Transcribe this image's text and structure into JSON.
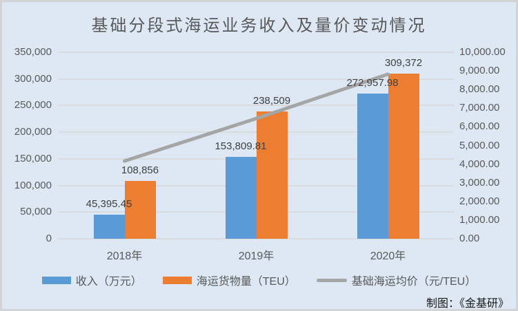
{
  "title": "基础分段式海运业务收入及量价变动情况",
  "credit": "制图：《金基研》",
  "chart_data": {
    "type": "bar",
    "subtype": "grouped bars with line overlay, dual y-axes",
    "title": "基础分段式海运业务收入及量价变动情况",
    "categories": [
      "2018年",
      "2019年",
      "2020年"
    ],
    "series": [
      {
        "key": "income",
        "name": "收入（万元）",
        "type": "bar",
        "axis": "left",
        "color": "#5B9BD5",
        "values": [
          45395.45,
          153809.81,
          272957.98
        ],
        "data_labels": [
          "45,395.45",
          "153,809.81",
          "272,957.98"
        ]
      },
      {
        "key": "volume",
        "name": "海运货物量（TEU）",
        "type": "bar",
        "axis": "left",
        "color": "#ED7D31",
        "values": [
          108856,
          238509,
          309372
        ],
        "data_labels": [
          "108,856",
          "238,509",
          "309,372"
        ]
      },
      {
        "key": "price",
        "name": "基础海运均价（元/TEU）",
        "type": "line",
        "axis": "right",
        "color": "#A5A5A5",
        "values": [
          4170,
          6449,
          8823
        ],
        "data_labels": []
      }
    ],
    "left_axis": {
      "min": 0,
      "max": 350000,
      "step": 50000,
      "tick_labels": [
        "0",
        "50,000",
        "100,000",
        "150,000",
        "200,000",
        "250,000",
        "300,000",
        "350,000"
      ]
    },
    "right_axis": {
      "min": 0,
      "max": 10000,
      "step": 1000,
      "tick_labels": [
        "0.00",
        "1,000.00",
        "2,000.00",
        "3,000.00",
        "4,000.00",
        "5,000.00",
        "6,000.00",
        "7,000.00",
        "8,000.00",
        "9,000.00",
        "10,000.00"
      ]
    },
    "legend_position": "bottom",
    "grid": true
  },
  "colors": {
    "background": "#DDE8F4",
    "frame_border": "#D2D3D5",
    "gridline": "#D9DBDE",
    "title_text": "#595959",
    "axis_text": "#595959",
    "data_label_text": "#404040",
    "credit_text": "#1A1A1A"
  }
}
